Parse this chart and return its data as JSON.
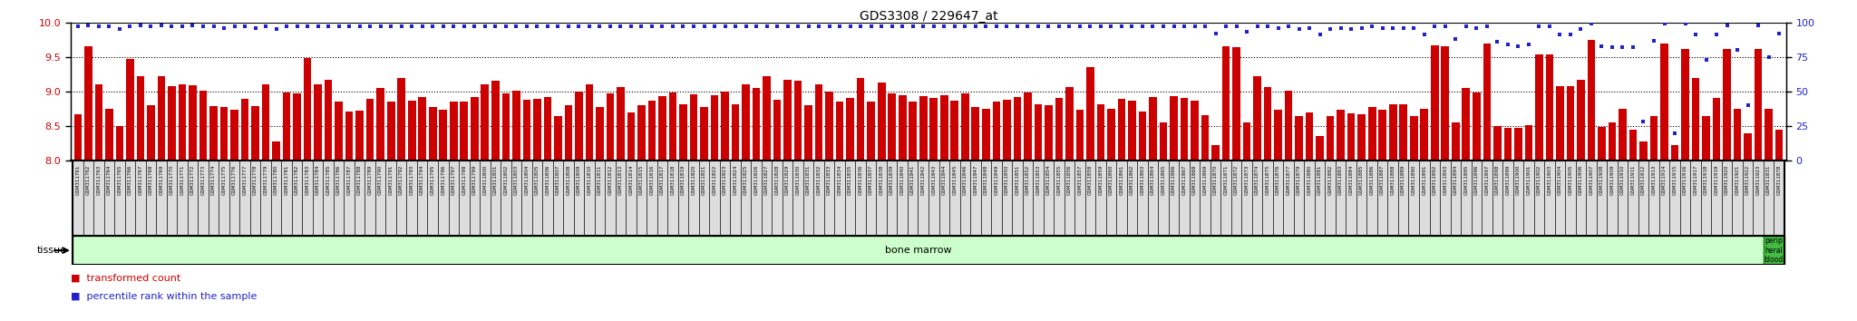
{
  "title": "GDS3308 / 229647_at",
  "ylim_left": [
    8.0,
    10.0
  ],
  "ylim_right": [
    0,
    100
  ],
  "yticks_left": [
    8.0,
    8.5,
    9.0,
    9.5,
    10.0
  ],
  "yticks_right": [
    0,
    25,
    50,
    75,
    100
  ],
  "bar_color": "#cc0000",
  "dot_color": "#2222cc",
  "tissue_color_bm": "#ccffcc",
  "tissue_color_pb": "#44bb44",
  "tissue_border_color": "#228822",
  "sample_box_color": "#dddddd",
  "legend_items": [
    {
      "label": "transformed count",
      "color": "#cc0000"
    },
    {
      "label": "percentile rank within the sample",
      "color": "#2222cc"
    }
  ],
  "samples": [
    "GSM311761",
    "GSM311762",
    "GSM311763",
    "GSM311764",
    "GSM311765",
    "GSM311766",
    "GSM311767",
    "GSM311768",
    "GSM311769",
    "GSM311770",
    "GSM311771",
    "GSM311772",
    "GSM311773",
    "GSM311774",
    "GSM311775",
    "GSM311776",
    "GSM311777",
    "GSM311778",
    "GSM311779",
    "GSM311780",
    "GSM311781",
    "GSM311782",
    "GSM311783",
    "GSM311784",
    "GSM311785",
    "GSM311786",
    "GSM311787",
    "GSM311788",
    "GSM311789",
    "GSM311790",
    "GSM311791",
    "GSM311792",
    "GSM311793",
    "GSM311794",
    "GSM311795",
    "GSM311796",
    "GSM311797",
    "GSM311798",
    "GSM311799",
    "GSM311800",
    "GSM311801",
    "GSM311802",
    "GSM311803",
    "GSM311804",
    "GSM311805",
    "GSM311806",
    "GSM311807",
    "GSM311808",
    "GSM311809",
    "GSM311810",
    "GSM311811",
    "GSM311812",
    "GSM311813",
    "GSM311814",
    "GSM311815",
    "GSM311816",
    "GSM311817",
    "GSM311818",
    "GSM311819",
    "GSM311820",
    "GSM311821",
    "GSM311822",
    "GSM311823",
    "GSM311824",
    "GSM311825",
    "GSM311826",
    "GSM311827",
    "GSM311828",
    "GSM311829",
    "GSM311830",
    "GSM311831",
    "GSM311832",
    "GSM311833",
    "GSM311834",
    "GSM311835",
    "GSM311836",
    "GSM311837",
    "GSM311838",
    "GSM311839",
    "GSM311840",
    "GSM311841",
    "GSM311842",
    "GSM311843",
    "GSM311844",
    "GSM311845",
    "GSM311846",
    "GSM311847",
    "GSM311848",
    "GSM311849",
    "GSM311850",
    "GSM311851",
    "GSM311852",
    "GSM311853",
    "GSM311854",
    "GSM311855",
    "GSM311856",
    "GSM311857",
    "GSM311858",
    "GSM311859",
    "GSM311860",
    "GSM311861",
    "GSM311862",
    "GSM311863",
    "GSM311864",
    "GSM311865",
    "GSM311866",
    "GSM311867",
    "GSM311868",
    "GSM311869",
    "GSM311870",
    "GSM311871",
    "GSM311872",
    "GSM311873",
    "GSM311874",
    "GSM311875",
    "GSM311876",
    "GSM311877",
    "GSM311879",
    "GSM311880",
    "GSM311881",
    "GSM311882",
    "GSM311883",
    "GSM311884",
    "GSM311885",
    "GSM311886",
    "GSM311887",
    "GSM311888",
    "GSM311889",
    "GSM311890",
    "GSM311891",
    "GSM311892",
    "GSM311893",
    "GSM311894",
    "GSM311895",
    "GSM311896",
    "GSM311897",
    "GSM311898",
    "GSM311899",
    "GSM311900",
    "GSM311901",
    "GSM311902",
    "GSM311903",
    "GSM311904",
    "GSM311905",
    "GSM311906",
    "GSM311907",
    "GSM311908",
    "GSM311909",
    "GSM311910",
    "GSM311911",
    "GSM311912",
    "GSM311913",
    "GSM311914",
    "GSM311915",
    "GSM311916",
    "GSM311917",
    "GSM311918",
    "GSM311919",
    "GSM311920",
    "GSM311921",
    "GSM311922",
    "GSM311923",
    "GSM311831",
    "GSM311878"
  ],
  "bar_values": [
    8.67,
    9.65,
    9.11,
    8.75,
    8.5,
    9.47,
    9.22,
    8.8,
    9.22,
    9.08,
    9.1,
    9.09,
    9.01,
    8.79,
    8.78,
    8.74,
    8.89,
    8.79,
    9.1,
    8.28,
    8.99,
    8.97,
    9.48,
    9.1,
    9.17,
    8.86,
    8.71,
    8.72,
    8.9,
    9.05,
    8.85,
    9.19,
    8.87,
    8.92,
    8.78,
    8.73,
    8.85,
    8.85,
    8.92,
    9.1,
    9.15,
    8.97,
    9.01,
    8.88,
    8.9,
    8.92,
    8.65,
    8.8,
    9.0,
    9.1,
    8.77,
    8.97,
    9.07,
    8.69,
    8.8,
    8.87,
    8.93,
    8.99,
    8.82,
    8.96,
    8.78,
    8.95,
    9.0,
    8.82,
    9.1,
    9.05,
    9.22,
    8.88,
    9.17,
    9.15,
    8.8,
    9.1,
    9.0,
    8.85,
    8.91,
    9.2,
    8.85,
    9.13,
    8.97,
    8.95,
    8.85,
    8.93,
    8.91,
    8.95,
    8.87,
    8.97,
    8.77,
    8.75,
    8.85,
    8.88,
    8.92,
    8.98,
    8.82,
    8.8,
    8.91,
    9.07,
    8.73,
    9.35,
    8.81,
    8.75,
    8.9,
    8.87,
    8.71,
    8.92,
    8.55,
    8.93,
    8.91,
    8.87,
    8.66,
    8.22,
    9.65,
    9.64,
    8.55,
    9.22,
    9.06,
    8.73,
    9.01,
    8.65,
    8.7,
    8.35,
    8.65,
    8.74,
    8.68,
    8.67,
    8.77,
    8.74,
    8.82,
    8.82,
    8.65,
    8.75,
    9.67,
    9.65,
    8.55,
    9.05,
    8.99,
    9.7,
    8.5,
    8.47,
    8.47,
    8.51,
    9.54,
    9.54,
    9.08,
    9.08,
    9.17,
    9.75,
    8.48,
    8.55,
    8.75,
    8.45,
    8.28,
    8.65,
    9.7,
    8.22,
    9.62,
    9.2,
    8.65,
    8.91,
    9.62,
    8.75,
    8.4,
    9.62,
    8.75,
    8.45
  ],
  "dot_values": [
    97,
    98,
    97,
    97,
    95,
    97,
    98,
    97,
    98,
    97,
    97,
    98,
    97,
    97,
    96,
    97,
    97,
    96,
    97,
    95,
    97,
    97,
    97,
    97,
    97,
    97,
    97,
    97,
    97,
    97,
    97,
    97,
    97,
    97,
    97,
    97,
    97,
    97,
    97,
    97,
    97,
    97,
    97,
    97,
    97,
    97,
    97,
    97,
    97,
    97,
    97,
    97,
    97,
    97,
    97,
    97,
    97,
    97,
    97,
    97,
    97,
    97,
    97,
    97,
    97,
    97,
    97,
    97,
    97,
    97,
    97,
    97,
    97,
    97,
    97,
    97,
    97,
    97,
    97,
    97,
    97,
    97,
    97,
    97,
    97,
    97,
    97,
    97,
    97,
    97,
    97,
    97,
    97,
    97,
    97,
    97,
    97,
    97,
    97,
    97,
    97,
    97,
    97,
    97,
    97,
    97,
    97,
    97,
    97,
    92,
    97,
    97,
    93,
    97,
    97,
    96,
    97,
    95,
    96,
    91,
    95,
    96,
    95,
    96,
    97,
    96,
    96,
    96,
    96,
    91,
    97,
    97,
    88,
    97,
    96,
    97,
    86,
    84,
    83,
    84,
    97,
    97,
    91,
    91,
    95,
    99,
    83,
    82,
    82,
    82,
    28,
    87,
    99,
    20,
    99,
    91,
    73,
    91,
    98,
    80,
    40,
    98,
    75,
    92
  ],
  "bone_marrow_count": 162,
  "n_samples": 164
}
